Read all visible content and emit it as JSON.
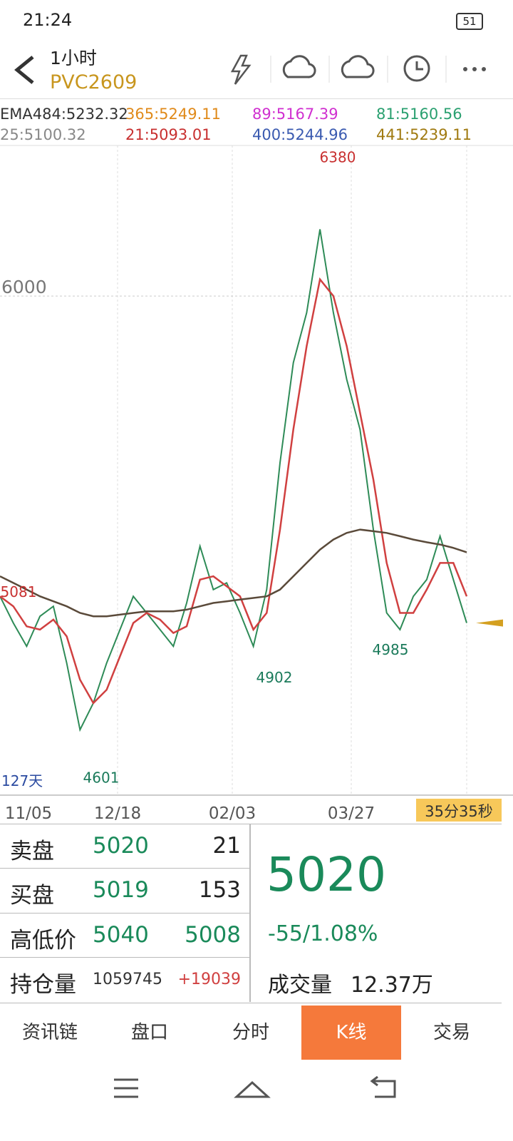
{
  "status_bar": {
    "time": "21:24",
    "battery": "51"
  },
  "header": {
    "period": "1小时",
    "symbol": "PVC2609"
  },
  "indicators": [
    "EMA484:5232.32",
    "365:5249.11",
    "89:5167.39",
    "81:5160.56",
    "25:5100.32",
    "21:5093.01",
    "400:5244.96",
    "441:5239.11"
  ],
  "chart": {
    "ylim": [
      4504,
      6449
    ],
    "yticks": [
      6000
    ],
    "x_labels": [
      "11/05",
      "12/18",
      "02/03",
      "03/27"
    ],
    "annotations": [
      6380,
      4601,
      4902,
      4985,
      5081
    ],
    "days": "127天",
    "countdown": "35分35秒",
    "last_price": 5020,
    "series": [
      {
        "color": "#2e8b57",
        "values": [
          5100,
          5020,
          4950,
          5040,
          5070,
          4900,
          4700,
          4780,
          4900,
          5000,
          5100,
          5050,
          5000,
          4950,
          5080,
          5250,
          5120,
          5140,
          5050,
          4950,
          5120,
          5500,
          5800,
          5950,
          6200,
          5950,
          5750,
          5600,
          5300,
          5050,
          5000,
          5100,
          5150,
          5280,
          5150,
          5020
        ]
      },
      {
        "color": "#d04040",
        "values": [
          5100,
          5070,
          5010,
          5000,
          5030,
          4980,
          4850,
          4780,
          4820,
          4920,
          5020,
          5050,
          5030,
          4990,
          5010,
          5150,
          5160,
          5130,
          5100,
          5000,
          5050,
          5300,
          5600,
          5850,
          6050,
          6000,
          5850,
          5650,
          5450,
          5200,
          5050,
          5050,
          5120,
          5200,
          5200,
          5100
        ]
      },
      {
        "color": "#5a4a3a",
        "values": [
          5160,
          5140,
          5120,
          5100,
          5085,
          5070,
          5050,
          5040,
          5040,
          5045,
          5050,
          5055,
          5055,
          5055,
          5060,
          5070,
          5080,
          5085,
          5090,
          5095,
          5100,
          5120,
          5160,
          5200,
          5240,
          5270,
          5290,
          5300,
          5295,
          5290,
          5280,
          5270,
          5262,
          5255,
          5245,
          5232
        ]
      }
    ]
  },
  "quote": {
    "rows": [
      [
        "卖盘",
        "5020",
        "21"
      ],
      [
        "买盘",
        "5019",
        "153"
      ],
      [
        "高低价",
        "5040",
        "5008"
      ],
      [
        "持仓量",
        "1059745",
        "+19039"
      ]
    ],
    "price": "5020",
    "change": "-55/1.08%",
    "volume_label": "成交量",
    "volume": "12.37万"
  },
  "tabs": [
    "资讯链",
    "盘口",
    "分时",
    "K线",
    "交易"
  ]
}
